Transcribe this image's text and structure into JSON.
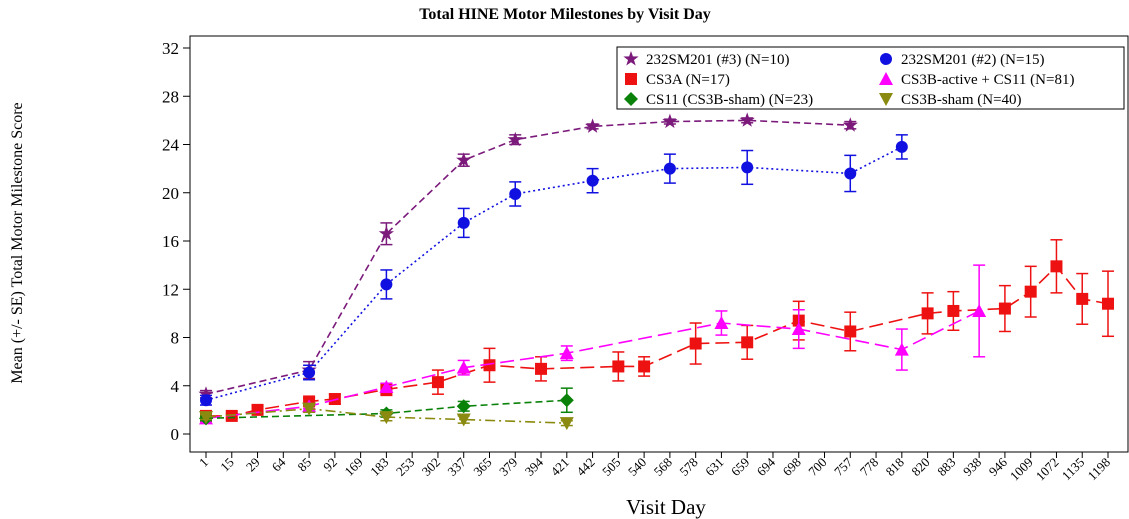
{
  "chart_data": {
    "type": "line",
    "title": "Total HINE Motor Milestones by Visit Day",
    "x_label": "Visit Day",
    "y_label": "Mean (+/- SE) Total Motor Milestone Score",
    "categories": [
      "1",
      "15",
      "29",
      "64",
      "85",
      "92",
      "169",
      "183",
      "253",
      "302",
      "337",
      "365",
      "379",
      "394",
      "421",
      "442",
      "505",
      "540",
      "568",
      "578",
      "631",
      "659",
      "694",
      "698",
      "700",
      "757",
      "778",
      "818",
      "820",
      "883",
      "938",
      "946",
      "1009",
      "1072",
      "1135",
      "1198"
    ],
    "ylim": [
      0,
      32
    ],
    "yticks": [
      0,
      4,
      8,
      12,
      16,
      20,
      24,
      28,
      32
    ],
    "series": [
      {
        "name": "232SM201 (#3) (N=10)",
        "color": "#7b1a7b",
        "marker": "star",
        "line_style": "dashed",
        "x": [
          "1",
          "85",
          "183",
          "337",
          "379",
          "442",
          "568",
          "659",
          "757"
        ],
        "values": [
          3.3,
          5.3,
          16.6,
          22.7,
          24.4,
          25.5,
          25.9,
          26.0,
          25.6
        ],
        "errors": [
          0.3,
          0.7,
          0.9,
          0.5,
          0.4,
          0.2,
          0.2,
          0.2,
          0.3
        ]
      },
      {
        "name": "232SM201 (#2) (N=15)",
        "color": "#1010e0",
        "marker": "circle",
        "line_style": "dotted",
        "x": [
          "1",
          "85",
          "183",
          "337",
          "379",
          "442",
          "568",
          "659",
          "757",
          "818"
        ],
        "values": [
          2.8,
          5.1,
          12.4,
          17.5,
          19.9,
          21.0,
          22.0,
          22.1,
          21.6,
          23.8
        ],
        "errors": [
          0.4,
          0.6,
          1.2,
          1.2,
          1.0,
          1.0,
          1.2,
          1.4,
          1.5,
          1.0
        ]
      },
      {
        "name": "CS3A (N=17)",
        "color": "#ee1111",
        "marker": "square",
        "line_style": "longdash",
        "x": [
          "1",
          "15",
          "29",
          "85",
          "92",
          "183",
          "302",
          "365",
          "394",
          "505",
          "540",
          "578",
          "659",
          "698",
          "757",
          "820",
          "883",
          "946",
          "1009",
          "1072",
          "1135",
          "1198"
        ],
        "values": [
          1.5,
          1.5,
          2.0,
          2.7,
          2.9,
          3.7,
          4.3,
          5.7,
          5.4,
          5.6,
          5.6,
          7.5,
          7.6,
          9.4,
          8.5,
          10.0,
          10.2,
          10.4,
          11.8,
          13.9,
          11.2,
          10.8
        ],
        "errors": [
          0.3,
          0.2,
          0.3,
          0.3,
          0.4,
          0.5,
          1.0,
          1.4,
          1.0,
          1.2,
          0.8,
          1.7,
          1.4,
          1.6,
          1.6,
          1.7,
          1.6,
          1.9,
          2.1,
          2.2,
          2.1,
          2.7
        ]
      },
      {
        "name": "CS3B-active + CS11 (N=81)",
        "color": "#ff00ff",
        "marker": "triangle",
        "line_style": "longdash",
        "x": [
          "1",
          "85",
          "183",
          "337",
          "421",
          "631",
          "698",
          "818",
          "938"
        ],
        "values": [
          1.3,
          2.3,
          3.9,
          5.5,
          6.7,
          9.2,
          8.7,
          7.0,
          10.2
        ],
        "errors": [
          0.2,
          0.2,
          0.3,
          0.6,
          0.6,
          1.0,
          1.6,
          1.7,
          3.8
        ]
      },
      {
        "name": "CS11 (CS3B-sham) (N=23)",
        "color": "#0a820a",
        "marker": "diamond",
        "line_style": "dashed",
        "x": [
          "1",
          "183",
          "337",
          "421"
        ],
        "values": [
          1.3,
          1.7,
          2.3,
          2.8
        ],
        "errors": [
          0.2,
          0.3,
          0.4,
          1.0
        ]
      },
      {
        "name": "CS3B-sham (N=40)",
        "color": "#8a8a10",
        "marker": "triangle-down",
        "line_style": "dashdot",
        "x": [
          "1",
          "85",
          "183",
          "337",
          "421"
        ],
        "values": [
          1.4,
          2.1,
          1.4,
          1.2,
          0.9
        ],
        "errors": [
          0.2,
          0.3,
          0.3,
          0.3,
          0.2
        ]
      }
    ]
  }
}
